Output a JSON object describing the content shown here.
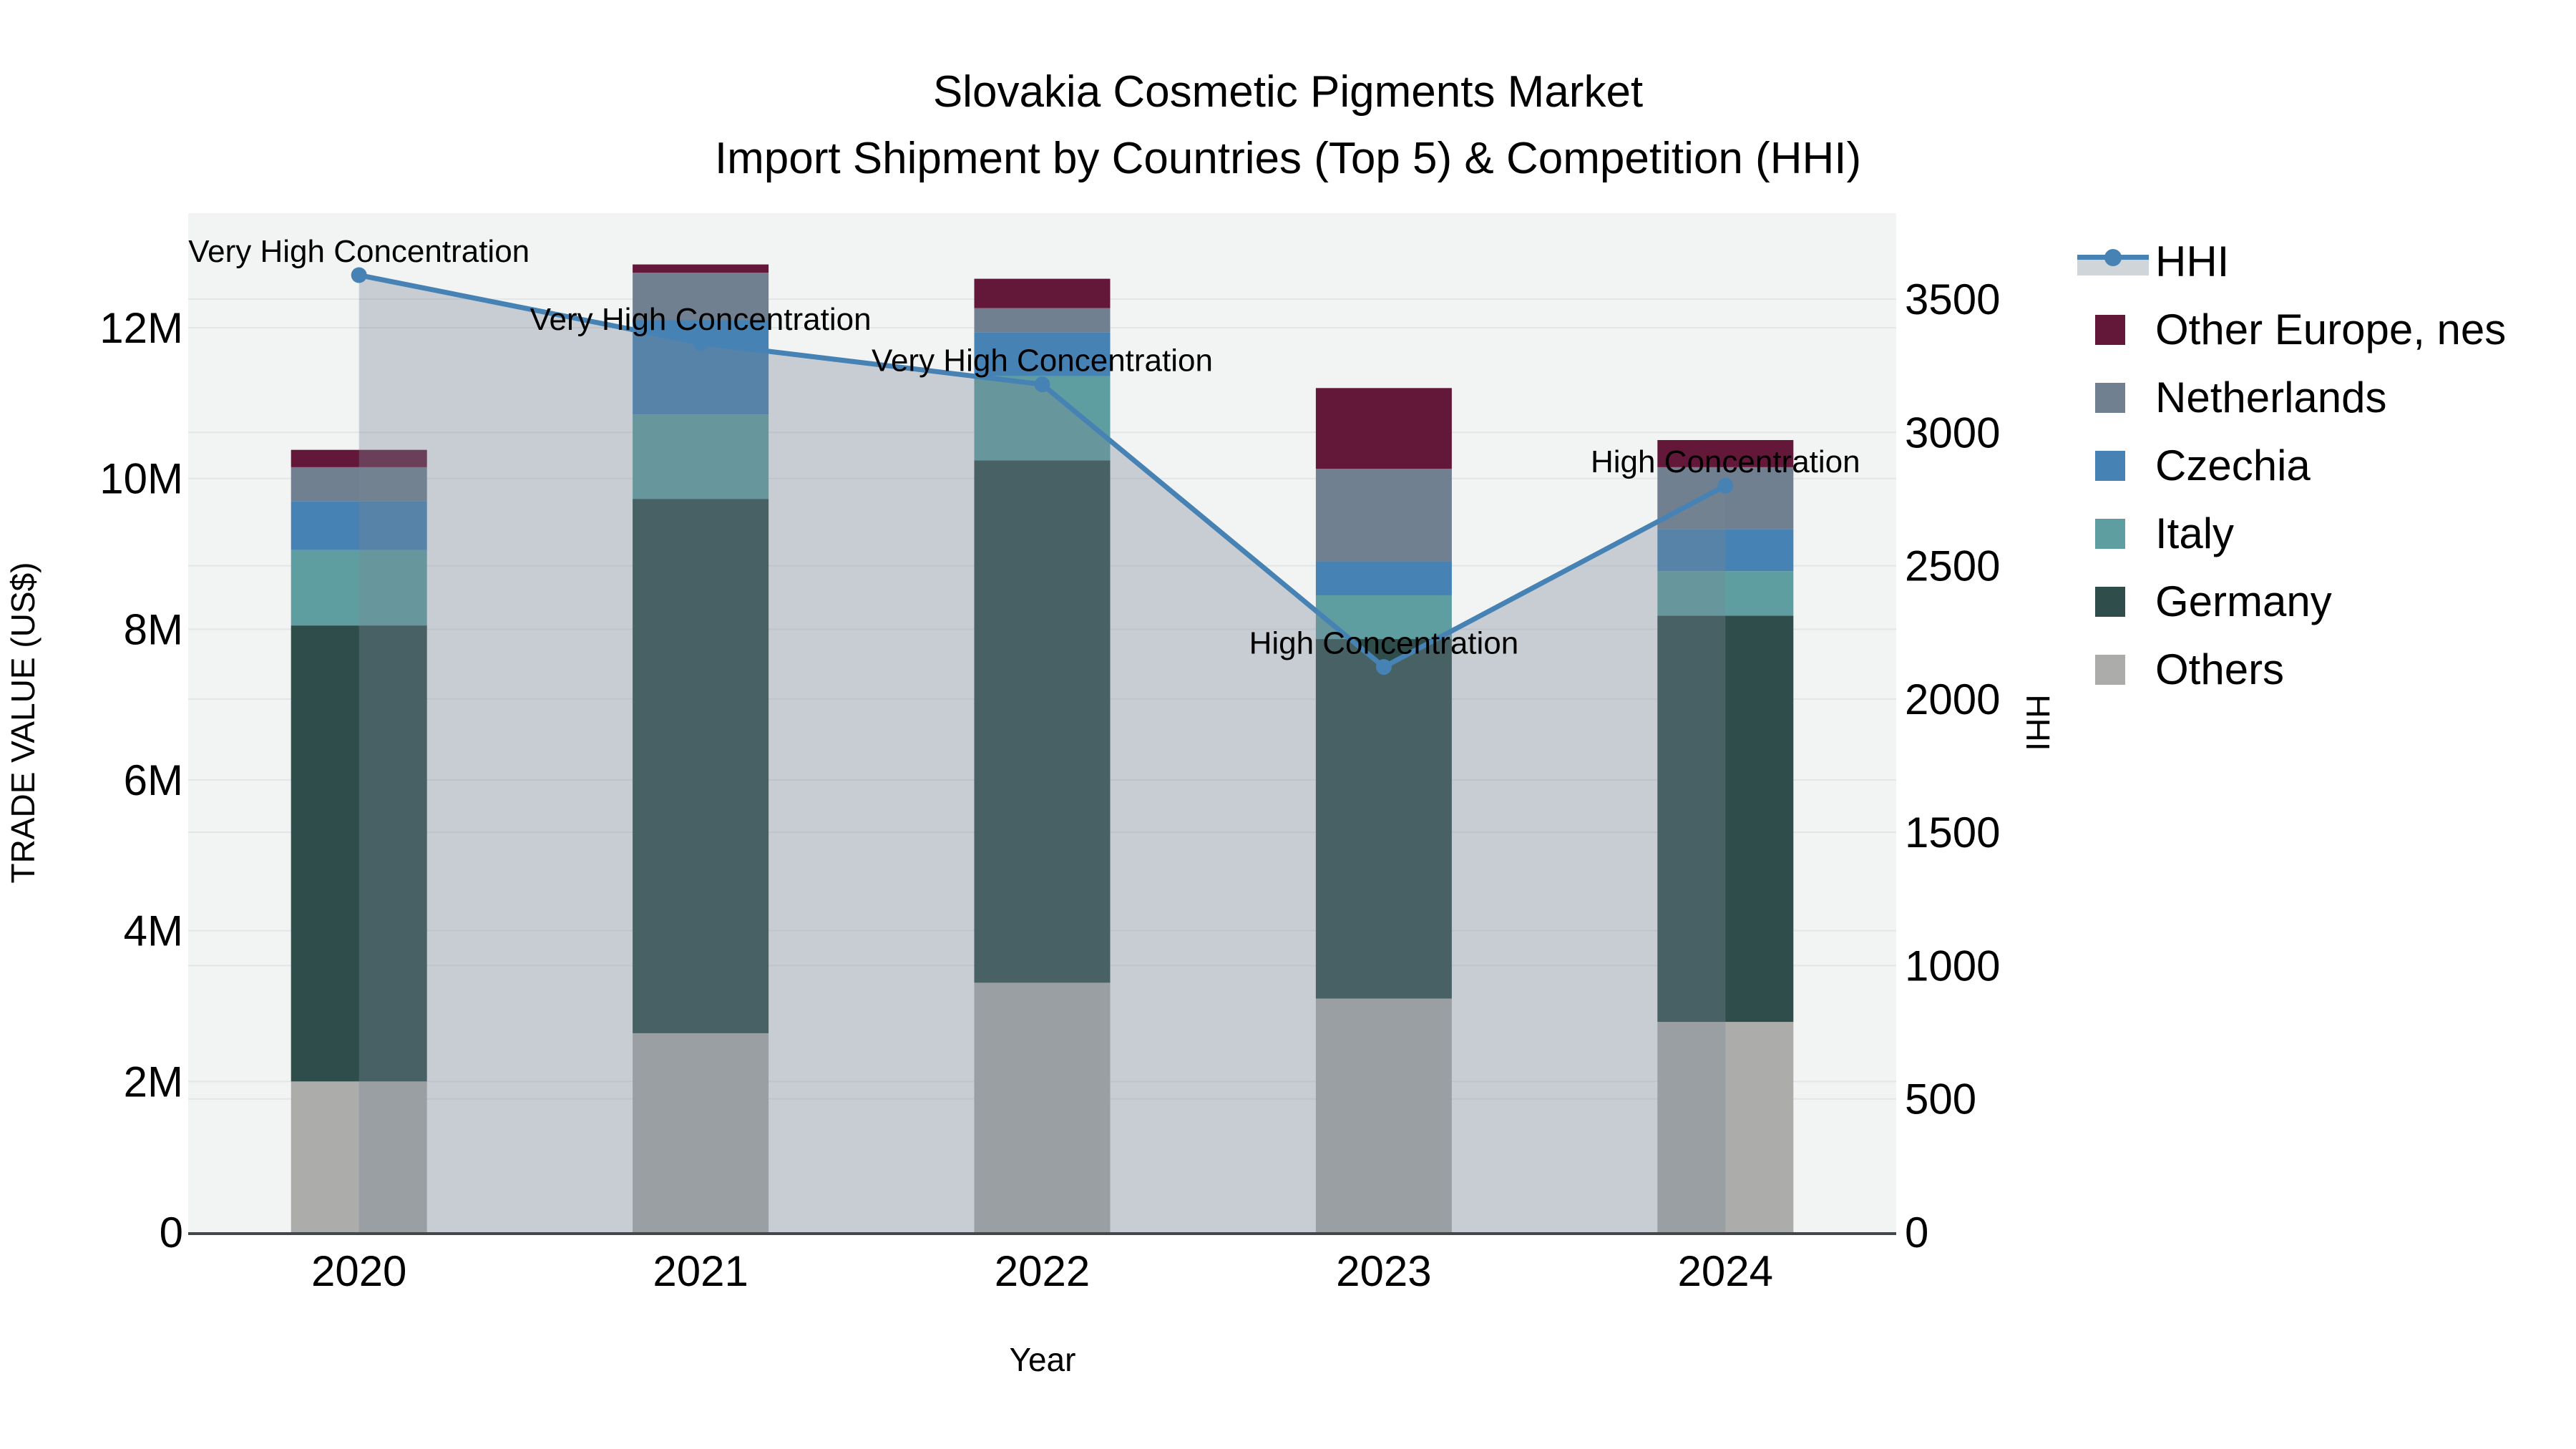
{
  "title": {
    "line1": "Slovakia Cosmetic Pigments Market",
    "line2": "Import Shipment by Countries (Top 5) & Competition (HHI)"
  },
  "axes": {
    "x_title": "Year",
    "y_left_title": "TRADE VALUE (US$)",
    "y_right_title": "HHI",
    "x_tick_labels": [
      "2020",
      "2021",
      "2022",
      "2023",
      "2024"
    ],
    "y_left_tick_labels": [
      "0",
      "2M",
      "4M",
      "6M",
      "8M",
      "10M",
      "12M"
    ],
    "y_left_tick_values_M": [
      0,
      2,
      4,
      6,
      8,
      10,
      12
    ],
    "y_right_tick_labels": [
      "0",
      "500",
      "1000",
      "1500",
      "2000",
      "2500",
      "3000",
      "3500"
    ],
    "y_right_tick_values": [
      0,
      500,
      1000,
      1500,
      2000,
      2500,
      3000,
      3500
    ]
  },
  "legend": {
    "position": "top-right",
    "items": [
      {
        "label": "HHI",
        "type": "line",
        "color": "#4682B4",
        "band_color": "#d0d5da"
      },
      {
        "label": "Other Europe, nes",
        "type": "square",
        "color": "#641839"
      },
      {
        "label": "Netherlands",
        "type": "square",
        "color": "#708090"
      },
      {
        "label": "Czechia",
        "type": "square",
        "color": "#4682B4"
      },
      {
        "label": "Italy",
        "type": "square",
        "color": "#5F9EA0"
      },
      {
        "label": "Germany",
        "type": "square",
        "color": "#2F4E4B"
      },
      {
        "label": "Others",
        "type": "square",
        "color": "#ACACAB"
      }
    ]
  },
  "chart_data": {
    "type": "stacked-bar-with-line",
    "title": "Slovakia Cosmetic Pigments Market — Import Shipment by Countries (Top 5) & Competition (HHI)",
    "categories": [
      "2020",
      "2021",
      "2022",
      "2023",
      "2024"
    ],
    "xlabel": "Year",
    "ylabel_left": "TRADE VALUE (US$)",
    "ylabel_right": "HHI",
    "bar_value_unit": "USD millions",
    "y_left_range_M": [
      0,
      13.5
    ],
    "y_right_range": [
      0,
      3820
    ],
    "grid": {
      "show": true,
      "left_axis_lines_M": [
        2,
        4,
        6,
        8,
        10,
        12
      ],
      "right_axis_lines": [
        500,
        1000,
        1500,
        2000,
        2500,
        3000,
        3500
      ]
    },
    "series": [
      {
        "name": "Others",
        "color": "#ACACAB",
        "values": [
          2.0,
          2.64,
          3.31,
          3.1,
          2.79
        ]
      },
      {
        "name": "Germany",
        "color": "#2F4E4B",
        "values": [
          6.05,
          7.09,
          6.93,
          4.77,
          5.39
        ]
      },
      {
        "name": "Italy",
        "color": "#5F9EA0",
        "values": [
          1.0,
          1.12,
          1.12,
          0.58,
          0.59
        ]
      },
      {
        "name": "Czechia",
        "color": "#4682B4",
        "values": [
          0.65,
          1.25,
          0.58,
          0.45,
          0.56
        ]
      },
      {
        "name": "Netherlands",
        "color": "#708090",
        "values": [
          0.45,
          0.63,
          0.32,
          1.23,
          0.82
        ]
      },
      {
        "name": "Other Europe, nes",
        "color": "#641839",
        "values": [
          0.23,
          0.11,
          0.39,
          1.07,
          0.36
        ]
      }
    ],
    "bar_totals_M": [
      10.38,
      12.84,
      12.65,
      11.2,
      10.51
    ],
    "line_series": {
      "name": "HHI",
      "axis": "right",
      "color": "#4682B4",
      "area_fill": "rgba(120,134,148,0.35)",
      "values": [
        3590,
        3335,
        3180,
        2120,
        2800
      ]
    },
    "annotations": [
      {
        "category": "2020",
        "text": "Very High Concentration"
      },
      {
        "category": "2021",
        "text": "Very High Concentration"
      },
      {
        "category": "2022",
        "text": "Very High Concentration"
      },
      {
        "category": "2023",
        "text": "High Concentration"
      },
      {
        "category": "2024",
        "text": "High Concentration"
      }
    ]
  }
}
